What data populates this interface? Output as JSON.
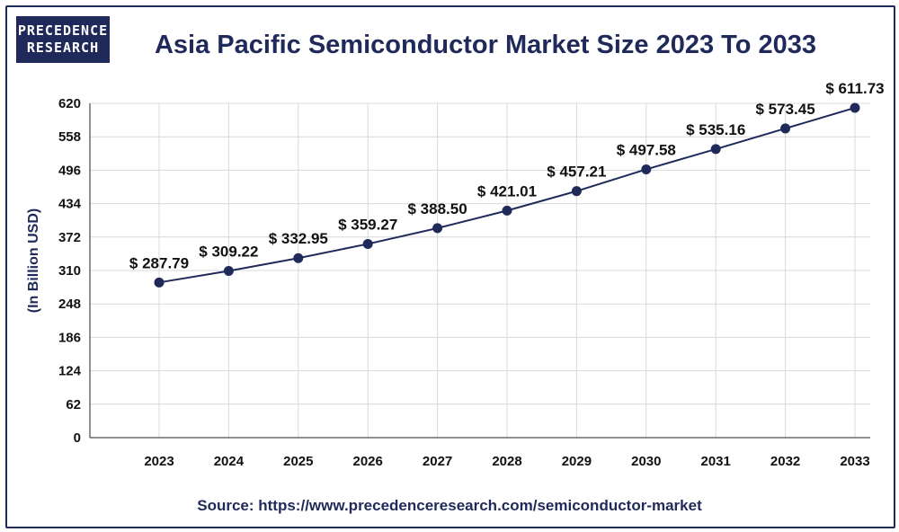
{
  "logo": {
    "line1": "PRECEDENCE",
    "line2": "RESEARCH"
  },
  "source": "Source: https://www.precedenceresearch.com/semiconductor-market",
  "colors": {
    "primary": "#1f2a5a",
    "grid": "#d8d8d8"
  },
  "chart_data": {
    "type": "line",
    "title": "Asia Pacific Semiconductor Market Size 2023 To 2033",
    "ylabel": "(In Billion USD)",
    "xlabel": "",
    "categories": [
      "2023",
      "2024",
      "2025",
      "2026",
      "2027",
      "2028",
      "2029",
      "2030",
      "2031",
      "2032",
      "2033"
    ],
    "values": [
      287.79,
      309.22,
      332.95,
      359.27,
      388.5,
      421.01,
      457.21,
      497.58,
      535.16,
      573.45,
      611.73
    ],
    "data_labels": [
      "$ 287.79",
      "$ 309.22",
      "$ 332.95",
      "$ 359.27",
      "$ 388.50",
      "$ 421.01",
      "$ 457.21",
      "$ 497.58",
      "$ 535.16",
      "$ 573.45",
      "$ 611.73"
    ],
    "yticks": [
      0,
      62,
      124,
      186,
      248,
      310,
      372,
      434,
      496,
      558,
      620
    ],
    "ylim": [
      0,
      620
    ],
    "grid": true,
    "legend": "none"
  }
}
